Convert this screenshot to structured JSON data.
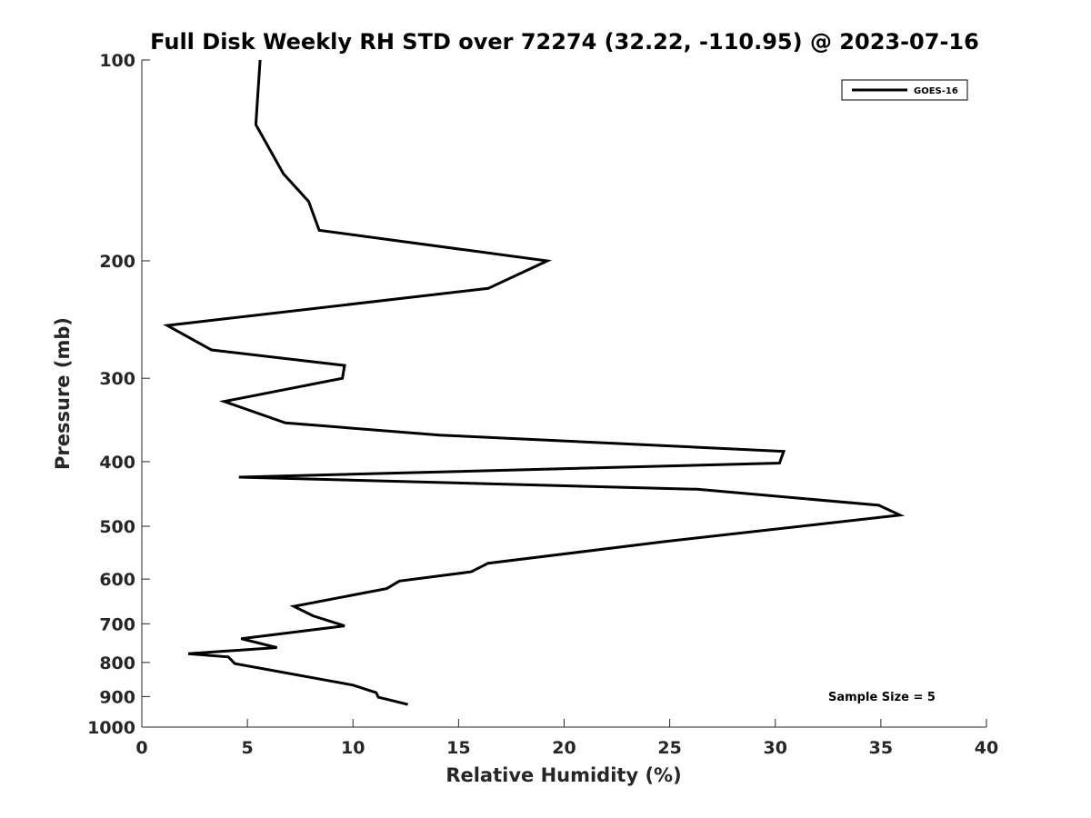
{
  "chart_data": {
    "type": "line",
    "title": "Full Disk Weekly RH STD over 72274 (32.22, -110.95) @ 2023-07-16",
    "xlabel": "Relative Humidity (%)",
    "ylabel": "Pressure (mb)",
    "xlim": [
      0,
      40
    ],
    "ylim": [
      100,
      1000
    ],
    "yscale": "log",
    "y_reversed": true,
    "grid": false,
    "x_ticks": [
      "0",
      "5",
      "10",
      "15",
      "20",
      "25",
      "30",
      "35",
      "40"
    ],
    "y_ticks": [
      "100",
      "200",
      "300",
      "400",
      "500",
      "600",
      "700",
      "800",
      "900",
      "1000"
    ],
    "legend": {
      "location": "top-right",
      "entries": [
        "GOES-16"
      ]
    },
    "annotation": "Sample Size = 5",
    "series": [
      {
        "name": "GOES-16",
        "color": "#000000",
        "x": [
          5.6,
          5.4,
          6.7,
          7.9,
          8.4,
          19.2,
          16.4,
          1.2,
          3.3,
          9.6,
          9.5,
          3.9,
          6.8,
          14.1,
          30.4,
          30.2,
          4.6,
          26.3,
          34.9,
          35.9,
          24.8,
          16.4,
          15.6,
          12.2,
          11.6,
          7.2,
          8.1,
          9.6,
          4.7,
          6.4,
          2.2,
          4.1,
          4.4,
          10.0,
          11.1,
          11.2,
          12.6
        ],
        "y": [
          100,
          125,
          148,
          163,
          180,
          200,
          220,
          250,
          272,
          287,
          300,
          325,
          350,
          365,
          386,
          402,
          422,
          440,
          465,
          481,
          527,
          568,
          585,
          604,
          620,
          659,
          681,
          705,
          737,
          760,
          776,
          785,
          803,
          865,
          888,
          902,
          925
        ]
      }
    ]
  }
}
